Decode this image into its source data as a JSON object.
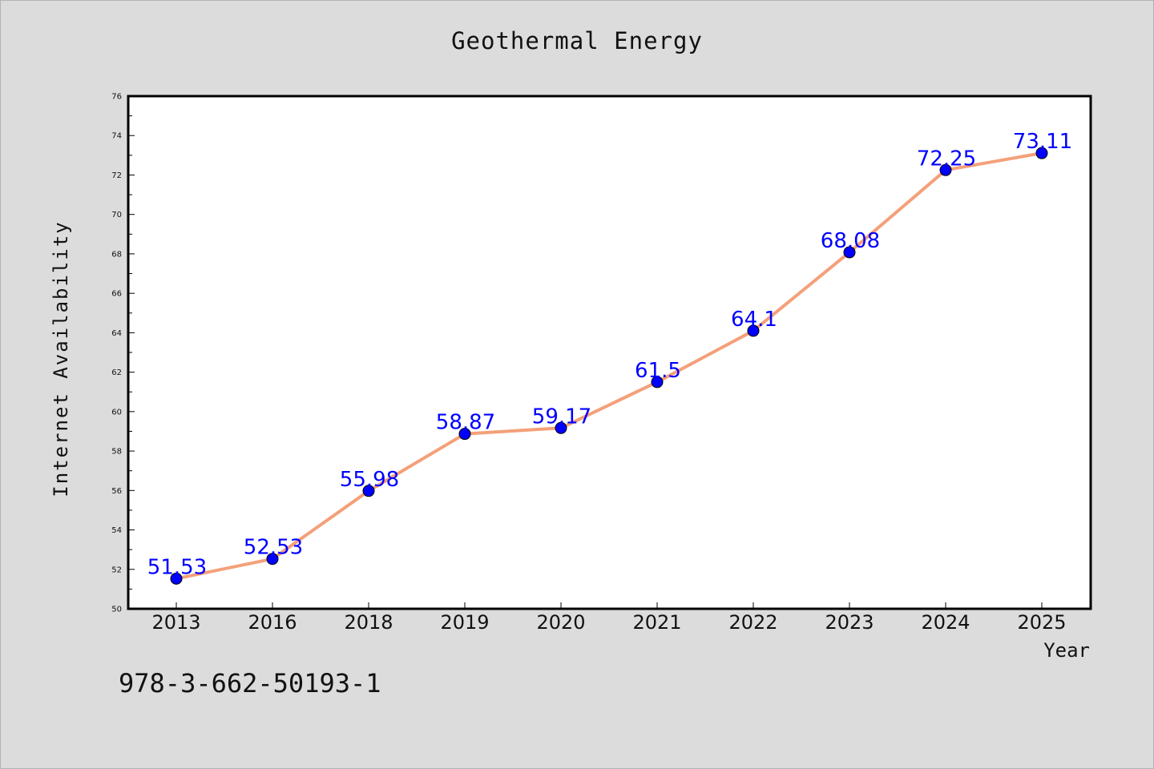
{
  "chart_data": {
    "type": "line",
    "title": "Geothermal Energy",
    "xlabel": "Year",
    "ylabel": "Internet Availability",
    "categories": [
      "2013",
      "2016",
      "2018",
      "2019",
      "2020",
      "2021",
      "2022",
      "2023",
      "2024",
      "2025"
    ],
    "series": [
      {
        "values": [
          51.53,
          52.53,
          55.98,
          58.87,
          59.17,
          61.5,
          64.1,
          68.08,
          72.25,
          73.11
        ],
        "data_labels": [
          "51.53",
          "52.53",
          "55.98",
          "58.87",
          "59.17",
          "61.5",
          "64.1",
          "68.08",
          "72.25",
          "73.11"
        ],
        "line_color": "#f4a07a",
        "marker_color": "#0000ff"
      }
    ],
    "ylim": [
      50,
      76
    ],
    "yticks": [
      50,
      52,
      54,
      56,
      58,
      60,
      62,
      64,
      66,
      68,
      70,
      72,
      74,
      76
    ],
    "grid": false,
    "legend": "none"
  },
  "footer": {
    "code": "978-3-662-50193-1"
  },
  "colors": {
    "background": "#dcdcdc",
    "plot_area": "#ffffff",
    "label_text": "#0000ff"
  }
}
